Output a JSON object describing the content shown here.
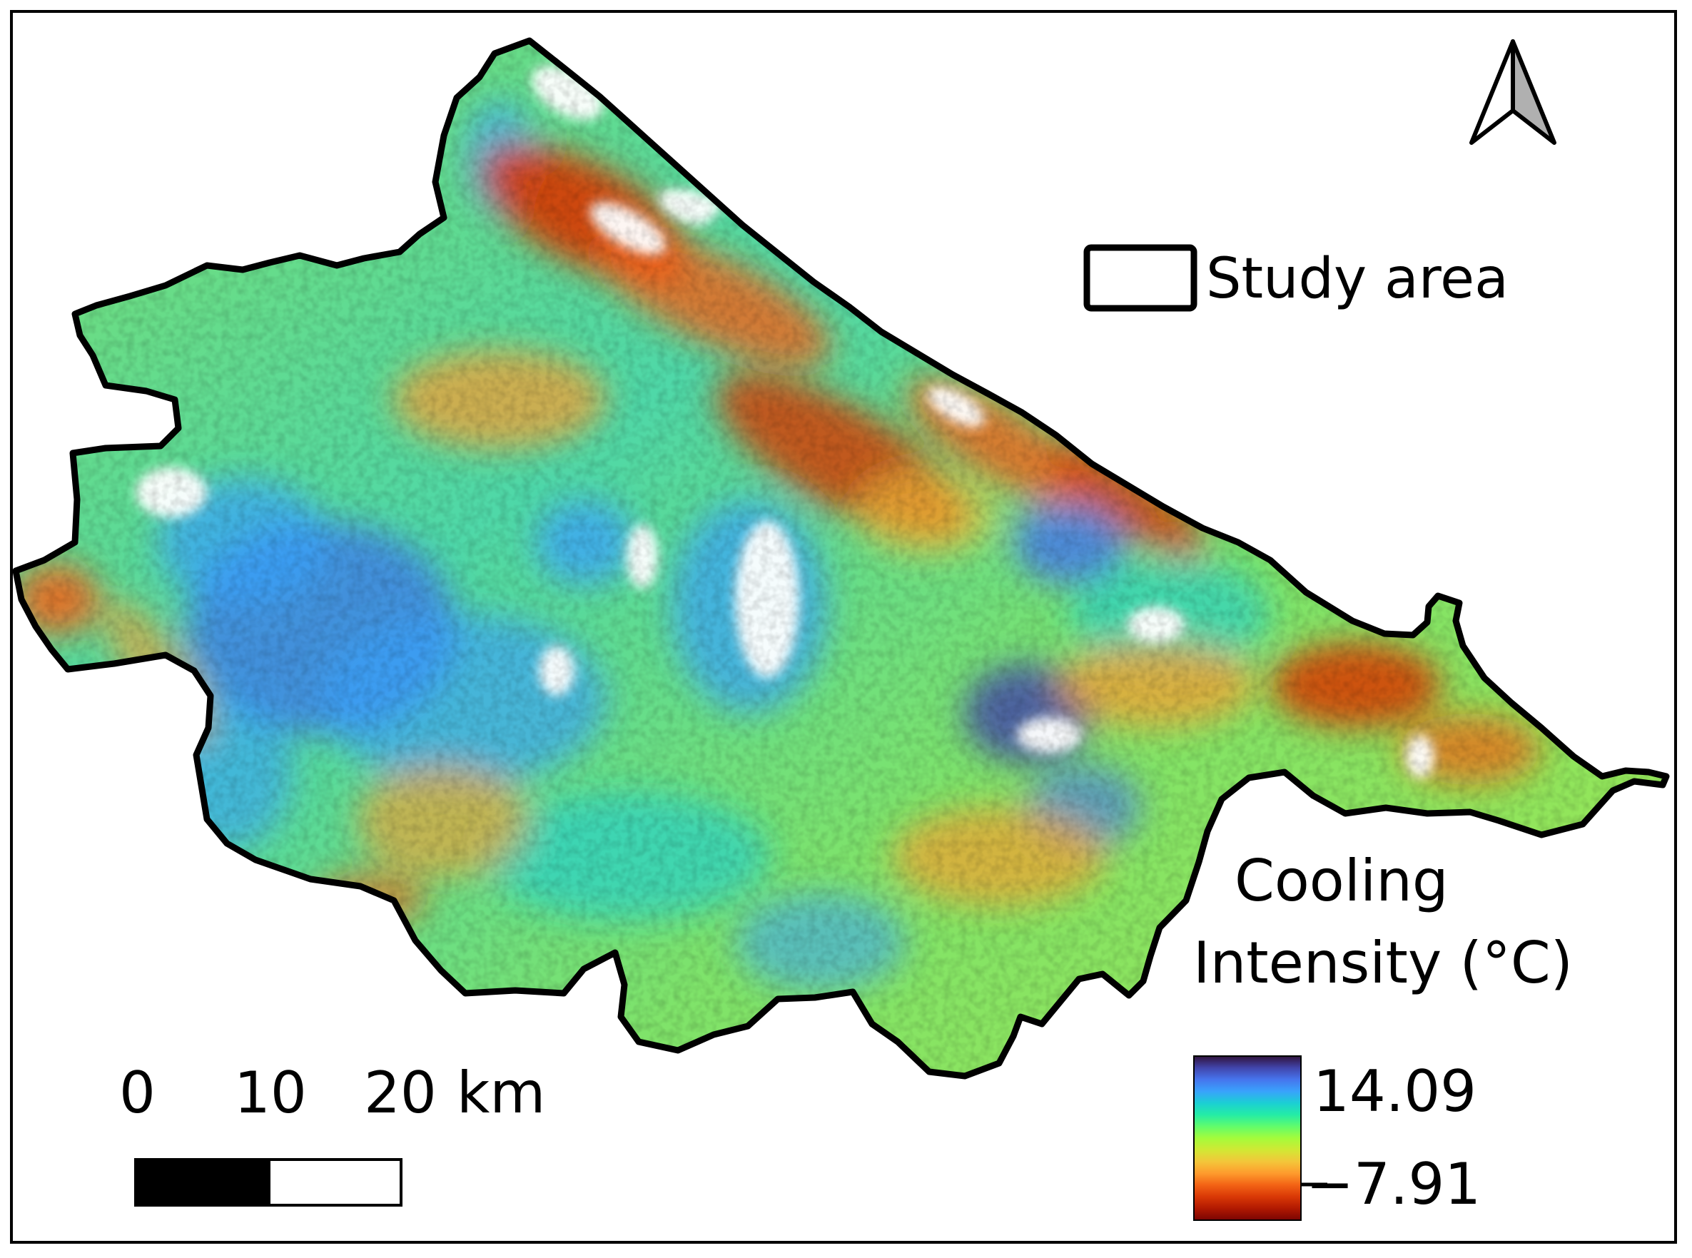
{
  "legend": {
    "study_area_label": "Study area",
    "title_line1": "Cooling",
    "title_line2": "Intensity (°C)",
    "max_label": "14.09",
    "min_label": "−7.91",
    "colormap": [
      "#30123b",
      "#4145ab",
      "#4675ed",
      "#39a2fc",
      "#1bcfd4",
      "#24eca6",
      "#61fc6c",
      "#a4fc3b",
      "#d1e834",
      "#f3c63a",
      "#fe9b2d",
      "#f36315",
      "#d93806",
      "#b11901",
      "#7a0403"
    ],
    "outline_color": "#000000"
  },
  "scale_bar": {
    "labels": [
      "0",
      "10",
      "20"
    ],
    "unit": "km",
    "colors": [
      "#000000",
      "#ffffff"
    ]
  },
  "north_arrow": {
    "icon": "north-arrow-icon"
  }
}
